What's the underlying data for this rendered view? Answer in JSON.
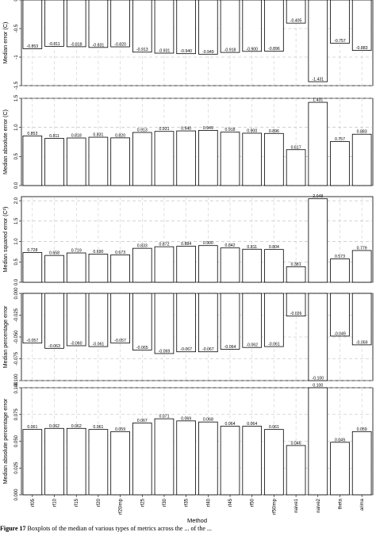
{
  "figure": {
    "xlabel": "Method",
    "caption_label": "Figure 17",
    "caption_text": "Boxplots of the median of various types of metrics across the ... of the ... "
  },
  "chart_data": [
    {
      "type": "bar",
      "ylabel": "Median error (C)",
      "categories": [
        "rf05",
        "rf10",
        "rf15",
        "rf20",
        "rf20imp",
        "rf25",
        "rf30",
        "rf35",
        "rf40",
        "rf45",
        "rf50",
        "rf50imp",
        "naive1",
        "naive2",
        "theta",
        "arima"
      ],
      "values": [
        -0.853,
        -0.811,
        -0.818,
        -0.831,
        -0.82,
        -0.913,
        -0.931,
        -0.94,
        -0.949,
        -0.918,
        -0.9,
        -0.896,
        -0.405,
        -1.431,
        -0.757,
        -0.883
      ],
      "labels": [
        "-0.853",
        "-0.811",
        "-0.818",
        "-0.831",
        "-0.820",
        "-0.913",
        "-0.931",
        "-0.940",
        "-0.949",
        "-0.918",
        "-0.900",
        "-0.896",
        "-0.405",
        "-1.431",
        "-0.757",
        "-0.883"
      ],
      "ylim": [
        -1.5,
        0
      ],
      "yticks": [
        0,
        -0.5,
        -1,
        -1.5
      ],
      "ytick_labels": [
        "0",
        "-0.5",
        "-1",
        "-1.5"
      ],
      "grid": true
    },
    {
      "type": "bar",
      "ylabel": "Median absolute error (C)",
      "categories": [
        "rf05",
        "rf10",
        "rf15",
        "rf20",
        "rf20imp",
        "rf25",
        "rf30",
        "rf35",
        "rf40",
        "rf45",
        "rf50",
        "rf50imp",
        "naive1",
        "naive2",
        "theta",
        "arima"
      ],
      "values": [
        0.853,
        0.811,
        0.818,
        0.831,
        0.82,
        0.913,
        0.931,
        0.94,
        0.949,
        0.918,
        0.9,
        0.896,
        0.617,
        1.431,
        0.757,
        0.883
      ],
      "labels": [
        "0.853",
        "0.811",
        "0.818",
        "0.831",
        "0.820",
        "0.913",
        "0.931",
        "0.940",
        "0.949",
        "0.918",
        "0.900",
        "0.896",
        "0.617",
        "1.431",
        "0.757",
        "0.883"
      ],
      "ylim": [
        0,
        1.5
      ],
      "yticks": [
        0,
        0.5,
        1,
        1.5
      ],
      "ytick_labels": [
        "0.0",
        "0.5",
        "1.0",
        "1.5"
      ],
      "grid": true
    },
    {
      "type": "bar",
      "ylabel": "Median squared error (C²)",
      "categories": [
        "rf05",
        "rf10",
        "rf15",
        "rf20",
        "rf20imp",
        "rf25",
        "rf30",
        "rf35",
        "rf40",
        "rf45",
        "rf50",
        "rf50imp",
        "naive1",
        "naive2",
        "theta",
        "arima"
      ],
      "values": [
        0.728,
        0.658,
        0.719,
        0.69,
        0.673,
        0.833,
        0.872,
        0.884,
        0.9,
        0.842,
        0.811,
        0.804,
        0.381,
        2.048,
        0.573,
        0.779
      ],
      "labels": [
        "0.728",
        "0.658",
        "0.719",
        "0.690",
        "0.673",
        "0.833",
        "0.872",
        "0.884",
        "0.900",
        "0.842",
        "0.811",
        "0.804",
        "0.381",
        "2.048",
        "0.573",
        "0.779"
      ],
      "ylim": [
        0,
        2.1
      ],
      "yticks": [
        0,
        0.5,
        1,
        1.5,
        2
      ],
      "ytick_labels": [
        "0.0",
        "0.5",
        "1.0",
        "1.5",
        "2.0"
      ],
      "grid": true
    },
    {
      "type": "bar",
      "ylabel": "Median percentage error",
      "categories": [
        "rf05",
        "rf10",
        "rf15",
        "rf20",
        "rf20imp",
        "rf25",
        "rf30",
        "rf35",
        "rf40",
        "rf45",
        "rf50",
        "rf50imp",
        "naive1",
        "naive2",
        "theta",
        "arima"
      ],
      "values": [
        -0.057,
        -0.063,
        -0.06,
        -0.061,
        -0.057,
        -0.065,
        -0.069,
        -0.067,
        -0.067,
        -0.064,
        -0.062,
        -0.061,
        -0.026,
        -0.1,
        -0.049,
        -0.059
      ],
      "labels": [
        "-0.057",
        "-0.063",
        "-0.060",
        "-0.061",
        "-0.057",
        "-0.065",
        "-0.069",
        "-0.067",
        "-0.067",
        "-0.064",
        "-0.062",
        "-0.061",
        "-0.026",
        "-0.100",
        "-0.049",
        "-0.059"
      ],
      "ylim": [
        -0.1,
        0
      ],
      "yticks": [
        0,
        -0.025,
        -0.05,
        -0.075,
        -0.1
      ],
      "ytick_labels": [
        "0.000",
        "-0.025",
        "-0.050",
        "-0.075",
        "-0.100"
      ],
      "grid": true
    },
    {
      "type": "bar",
      "ylabel": "Median absolute percentage error",
      "categories": [
        "rf05",
        "rf10",
        "rf15",
        "rf20",
        "rf20imp",
        "rf25",
        "rf30",
        "rf35",
        "rf40",
        "rf45",
        "rf50",
        "rf50imp",
        "naive1",
        "naive2",
        "theta",
        "arima"
      ],
      "values": [
        0.061,
        0.062,
        0.062,
        0.061,
        0.059,
        0.067,
        0.071,
        0.069,
        0.068,
        0.064,
        0.064,
        0.061,
        0.046,
        0.1,
        0.049,
        0.059
      ],
      "labels": [
        "0.061",
        "0.062",
        "0.062",
        "0.061",
        "0.059",
        "0.067",
        "0.071",
        "0.069",
        "0.068",
        "0.064",
        "0.064",
        "0.061",
        "0.046",
        "0.100",
        "0.049",
        "0.059"
      ],
      "ylim": [
        0,
        0.1
      ],
      "yticks": [
        0,
        0.025,
        0.05,
        0.075,
        0.1
      ],
      "ytick_labels": [
        "0.000",
        "0.025",
        "0.050",
        "0.075",
        "0.100"
      ],
      "grid": true
    }
  ]
}
